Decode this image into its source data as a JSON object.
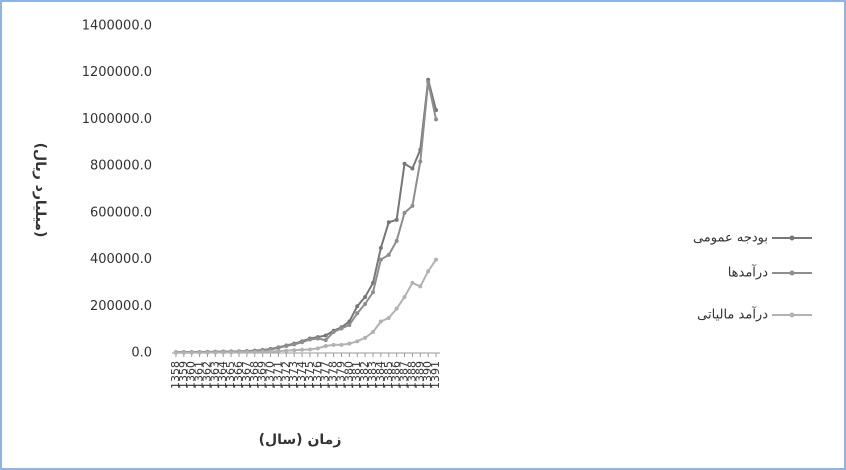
{
  "chart_data": {
    "type": "line",
    "y_label": "(میلیارد ریال)",
    "x_label": "زمان (سال)",
    "categories": [
      "1358",
      "1359",
      "1360",
      "1361",
      "1362",
      "1363",
      "1364",
      "1365",
      "1366",
      "1367",
      "1368",
      "1369",
      "1370",
      "1371",
      "1372",
      "1373",
      "1374",
      "1375",
      "1376",
      "1377",
      "1378",
      "1379",
      "1380",
      "1381",
      "1382",
      "1383",
      "1384",
      "1385",
      "1386",
      "1387",
      "1388",
      "1389",
      "1390",
      "1391"
    ],
    "series": [
      {
        "name": "بودجه عمومی",
        "color": "#777777",
        "values": [
          3000,
          3500,
          4000,
          4500,
          5000,
          5500,
          6000,
          6500,
          7000,
          8000,
          10000,
          13000,
          17000,
          24000,
          32000,
          40000,
          50000,
          62000,
          68000,
          75000,
          95000,
          110000,
          135000,
          200000,
          240000,
          300000,
          450000,
          560000,
          570000,
          810000,
          790000,
          870000,
          1170000,
          1040000
        ]
      },
      {
        "name": "درآمدها",
        "color": "#8e8e8e",
        "values": [
          2500,
          3000,
          3500,
          4000,
          4500,
          5000,
          5500,
          6000,
          6500,
          7500,
          9000,
          12000,
          15000,
          22000,
          30000,
          37000,
          46000,
          58000,
          62000,
          55000,
          90000,
          105000,
          120000,
          170000,
          210000,
          260000,
          400000,
          420000,
          480000,
          600000,
          630000,
          820000,
          1160000,
          1000000
        ]
      },
      {
        "name": "درآمد مالیاتی",
        "color": "#b2b2b2",
        "values": [
          1000,
          1200,
          1400,
          1600,
          1800,
          2000,
          2300,
          2600,
          3000,
          3500,
          4000,
          5000,
          6000,
          8000,
          10000,
          12000,
          14000,
          15000,
          20000,
          30000,
          35000,
          35000,
          40000,
          50000,
          65000,
          90000,
          135000,
          150000,
          190000,
          240000,
          300000,
          285000,
          350000,
          400000
        ]
      }
    ],
    "ylim": [
      0,
      1400000
    ],
    "yticks": [
      {
        "value": 0,
        "label": "0.0"
      },
      {
        "value": 200000,
        "label": "200000.0"
      },
      {
        "value": 400000,
        "label": "400000.0"
      },
      {
        "value": 600000,
        "label": "600000.0"
      },
      {
        "value": 800000,
        "label": "800000.0"
      },
      {
        "value": 1000000,
        "label": "1000000.0"
      },
      {
        "value": 1200000,
        "label": "1200000.0"
      },
      {
        "value": 1400000,
        "label": "1400000.0"
      }
    ],
    "legend": "right"
  }
}
